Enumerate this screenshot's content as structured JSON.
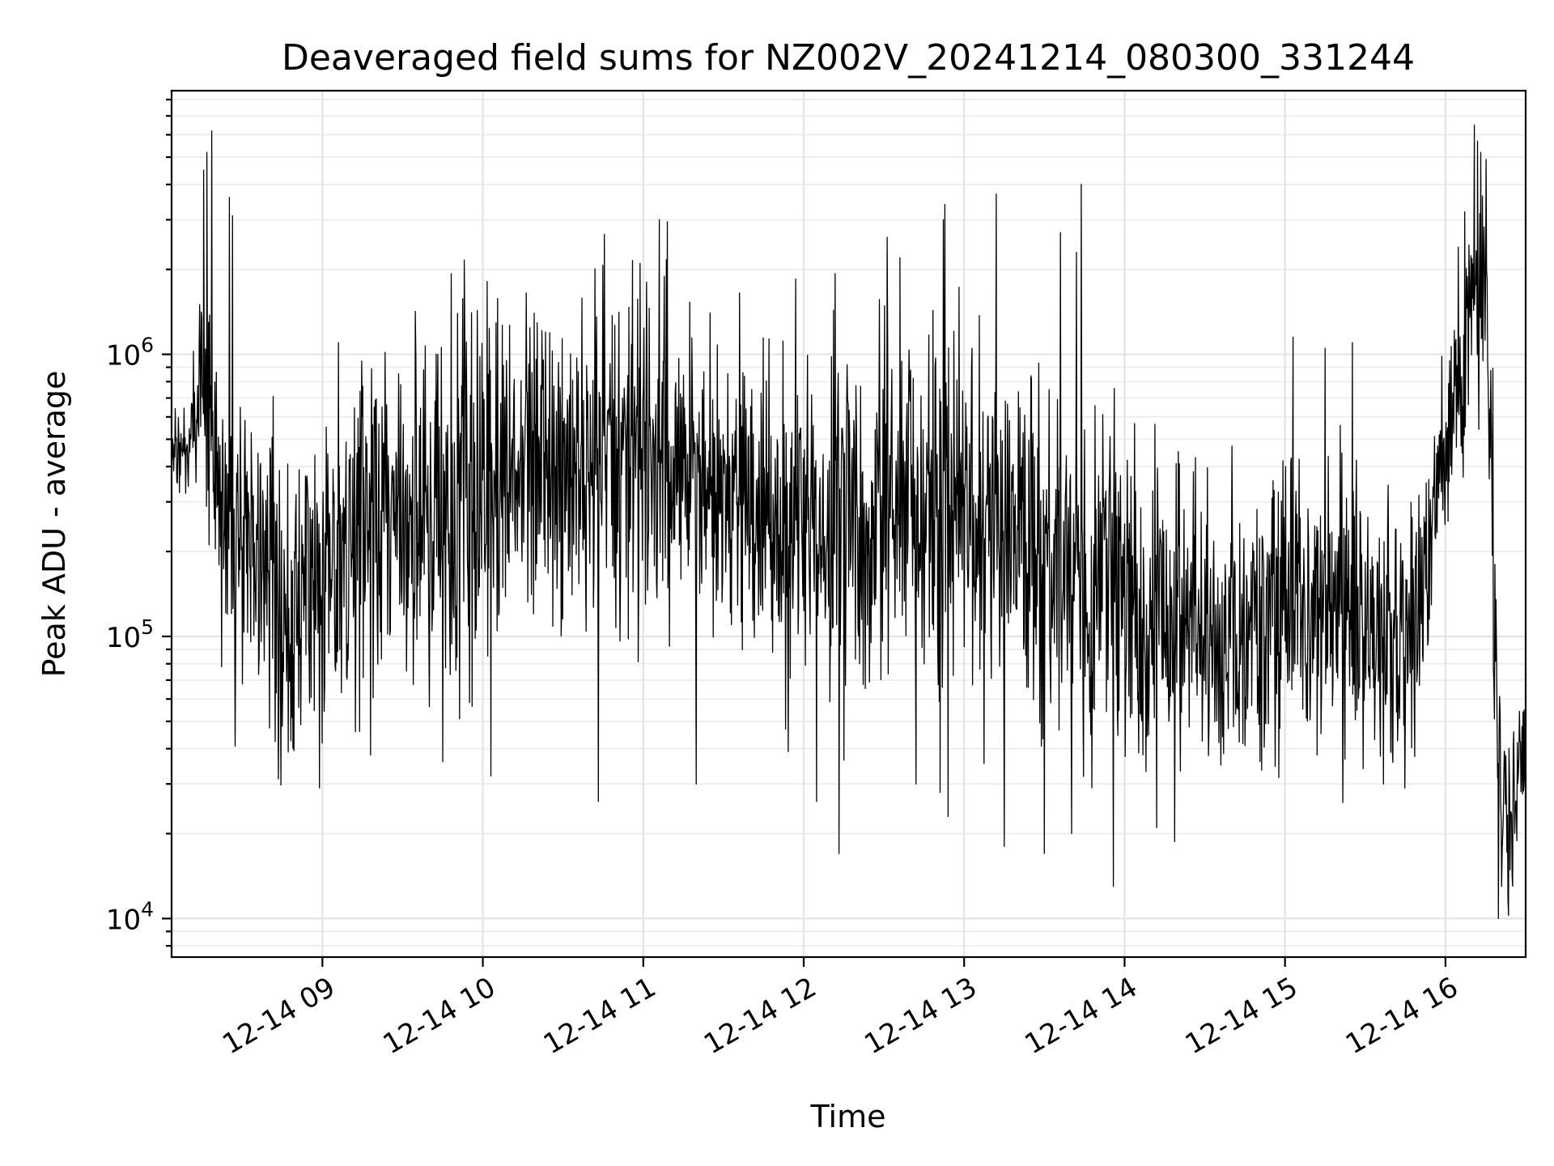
{
  "chart_data": {
    "type": "line",
    "title": "Deaveraged field sums for NZ002V_20241214_080300_331244",
    "xlabel": "Time",
    "ylabel": "Peak ADU - average",
    "yscale": "log",
    "grid": true,
    "x_tick_labels": [
      "12-14 09",
      "12-14 10",
      "12-14 11",
      "12-14 12",
      "12-14 13",
      "12-14 14",
      "12-14 15",
      "12-14 16"
    ],
    "x_tick_hours": [
      9,
      10,
      11,
      12,
      13,
      14,
      15,
      16
    ],
    "y_tick_labels": [
      {
        "base": "10",
        "exp": "4",
        "value": 10000
      },
      {
        "base": "10",
        "exp": "5",
        "value": 100000
      },
      {
        "base": "10",
        "exp": "6",
        "value": 1000000
      }
    ],
    "xlim_hours": [
      8.06,
      16.5
    ],
    "ylim": [
      7300,
      8600000
    ],
    "series": [
      {
        "color": "#000000",
        "x_hours": [
          8.06,
          8.18,
          8.25,
          8.3,
          8.35,
          8.42,
          8.5,
          8.6,
          8.7,
          8.8,
          8.9,
          9.0,
          9.1,
          9.2,
          9.3,
          9.4,
          9.5,
          9.6,
          9.7,
          9.8,
          9.9,
          10.0,
          10.1,
          10.2,
          10.3,
          10.4,
          10.5,
          10.6,
          10.7,
          10.8,
          10.9,
          11.0,
          11.1,
          11.2,
          11.3,
          11.4,
          11.5,
          11.6,
          11.7,
          11.8,
          11.9,
          12.0,
          12.1,
          12.2,
          12.3,
          12.4,
          12.5,
          12.6,
          12.7,
          12.8,
          12.9,
          13.0,
          13.1,
          13.2,
          13.3,
          13.4,
          13.5,
          13.6,
          13.7,
          13.8,
          13.9,
          14.0,
          14.1,
          14.2,
          14.3,
          14.4,
          14.5,
          14.6,
          14.7,
          14.8,
          14.9,
          15.0,
          15.1,
          15.2,
          15.3,
          15.4,
          15.5,
          15.6,
          15.7,
          15.8,
          15.9,
          16.0,
          16.1,
          16.15,
          16.2,
          16.25,
          16.3,
          16.35,
          16.4,
          16.45,
          16.5
        ],
        "median": [
          450000,
          480000,
          900000,
          500000,
          250000,
          220000,
          200000,
          150000,
          130000,
          110000,
          150000,
          170000,
          200000,
          230000,
          260000,
          250000,
          230000,
          300000,
          280000,
          250000,
          300000,
          350000,
          330000,
          380000,
          420000,
          400000,
          430000,
          420000,
          380000,
          400000,
          420000,
          450000,
          400000,
          380000,
          350000,
          330000,
          320000,
          310000,
          300000,
          280000,
          260000,
          250000,
          240000,
          230000,
          250000,
          260000,
          270000,
          280000,
          300000,
          270000,
          260000,
          280000,
          270000,
          240000,
          230000,
          220000,
          200000,
          190000,
          180000,
          170000,
          160000,
          150000,
          140000,
          130000,
          120000,
          110000,
          100000,
          100000,
          110000,
          120000,
          130000,
          140000,
          140000,
          130000,
          130000,
          140000,
          120000,
          110000,
          100000,
          100000,
          200000,
          500000,
          800000,
          1400000,
          2000000,
          1500000,
          120000,
          25000,
          22000,
          32000,
          38000
        ],
        "spread": [
          0.15,
          0.2,
          0.4,
          0.45,
          0.55,
          0.6,
          0.6,
          0.6,
          0.6,
          0.6,
          0.62,
          0.62,
          0.62,
          0.62,
          0.65,
          0.65,
          0.65,
          0.7,
          0.72,
          0.72,
          0.72,
          0.72,
          0.72,
          0.7,
          0.7,
          0.7,
          0.7,
          0.7,
          0.7,
          0.7,
          0.68,
          0.66,
          0.62,
          0.6,
          0.6,
          0.6,
          0.6,
          0.6,
          0.6,
          0.6,
          0.62,
          0.65,
          0.68,
          0.7,
          0.7,
          0.7,
          0.72,
          0.72,
          0.72,
          0.72,
          0.72,
          0.72,
          0.72,
          0.72,
          0.72,
          0.72,
          0.72,
          0.72,
          0.72,
          0.72,
          0.72,
          0.7,
          0.68,
          0.66,
          0.64,
          0.62,
          0.6,
          0.6,
          0.6,
          0.6,
          0.6,
          0.6,
          0.6,
          0.6,
          0.6,
          0.6,
          0.55,
          0.5,
          0.5,
          0.5,
          0.45,
          0.4,
          0.4,
          0.4,
          0.45,
          0.55,
          0.55,
          0.25,
          0.3,
          0.25,
          0.2
        ],
        "peaks": [
          {
            "x": 8.28,
            "y": 5200000
          },
          {
            "x": 8.31,
            "y": 6200000
          },
          {
            "x": 8.26,
            "y": 4500000
          },
          {
            "x": 8.42,
            "y": 3600000
          },
          {
            "x": 8.44,
            "y": 3100000
          },
          {
            "x": 9.1,
            "y": 1100000
          },
          {
            "x": 9.3,
            "y": 1050000
          },
          {
            "x": 9.72,
            "y": 1000000
          },
          {
            "x": 10.32,
            "y": 1400000
          },
          {
            "x": 10.98,
            "y": 2100000
          },
          {
            "x": 11.1,
            "y": 3000000
          },
          {
            "x": 11.15,
            "y": 2950000
          },
          {
            "x": 11.6,
            "y": 1650000
          },
          {
            "x": 11.95,
            "y": 1850000
          },
          {
            "x": 12.52,
            "y": 2600000
          },
          {
            "x": 12.6,
            "y": 2200000
          },
          {
            "x": 12.87,
            "y": 3000000
          },
          {
            "x": 12.88,
            "y": 3400000
          },
          {
            "x": 13.2,
            "y": 3700000
          },
          {
            "x": 13.5,
            "y": 1700000
          },
          {
            "x": 13.6,
            "y": 2700000
          },
          {
            "x": 13.7,
            "y": 2300000
          },
          {
            "x": 13.73,
            "y": 4000000
          },
          {
            "x": 14.2,
            "y": 1200000
          },
          {
            "x": 15.05,
            "y": 1150000
          },
          {
            "x": 15.25,
            "y": 1050000
          },
          {
            "x": 15.42,
            "y": 1100000
          },
          {
            "x": 16.08,
            "y": 2400000
          },
          {
            "x": 16.12,
            "y": 3200000
          },
          {
            "x": 16.18,
            "y": 6500000
          },
          {
            "x": 16.2,
            "y": 5700000
          },
          {
            "x": 16.22,
            "y": 5200000
          }
        ],
        "troughs": [
          {
            "x": 8.75,
            "y": 48000
          },
          {
            "x": 9.3,
            "y": 38000
          },
          {
            "x": 9.75,
            "y": 36000
          },
          {
            "x": 10.05,
            "y": 32000
          },
          {
            "x": 10.72,
            "y": 26000
          },
          {
            "x": 11.33,
            "y": 30000
          },
          {
            "x": 12.08,
            "y": 26000
          },
          {
            "x": 12.22,
            "y": 17000
          },
          {
            "x": 12.7,
            "y": 30000
          },
          {
            "x": 12.85,
            "y": 28000
          },
          {
            "x": 12.9,
            "y": 23000
          },
          {
            "x": 13.25,
            "y": 18000
          },
          {
            "x": 13.5,
            "y": 17000
          },
          {
            "x": 13.67,
            "y": 20000
          },
          {
            "x": 13.93,
            "y": 13000
          },
          {
            "x": 14.2,
            "y": 21000
          },
          {
            "x": 14.6,
            "y": 35000
          },
          {
            "x": 15.2,
            "y": 38000
          },
          {
            "x": 16.33,
            "y": 10000
          },
          {
            "x": 16.35,
            "y": 13000
          }
        ]
      }
    ]
  }
}
